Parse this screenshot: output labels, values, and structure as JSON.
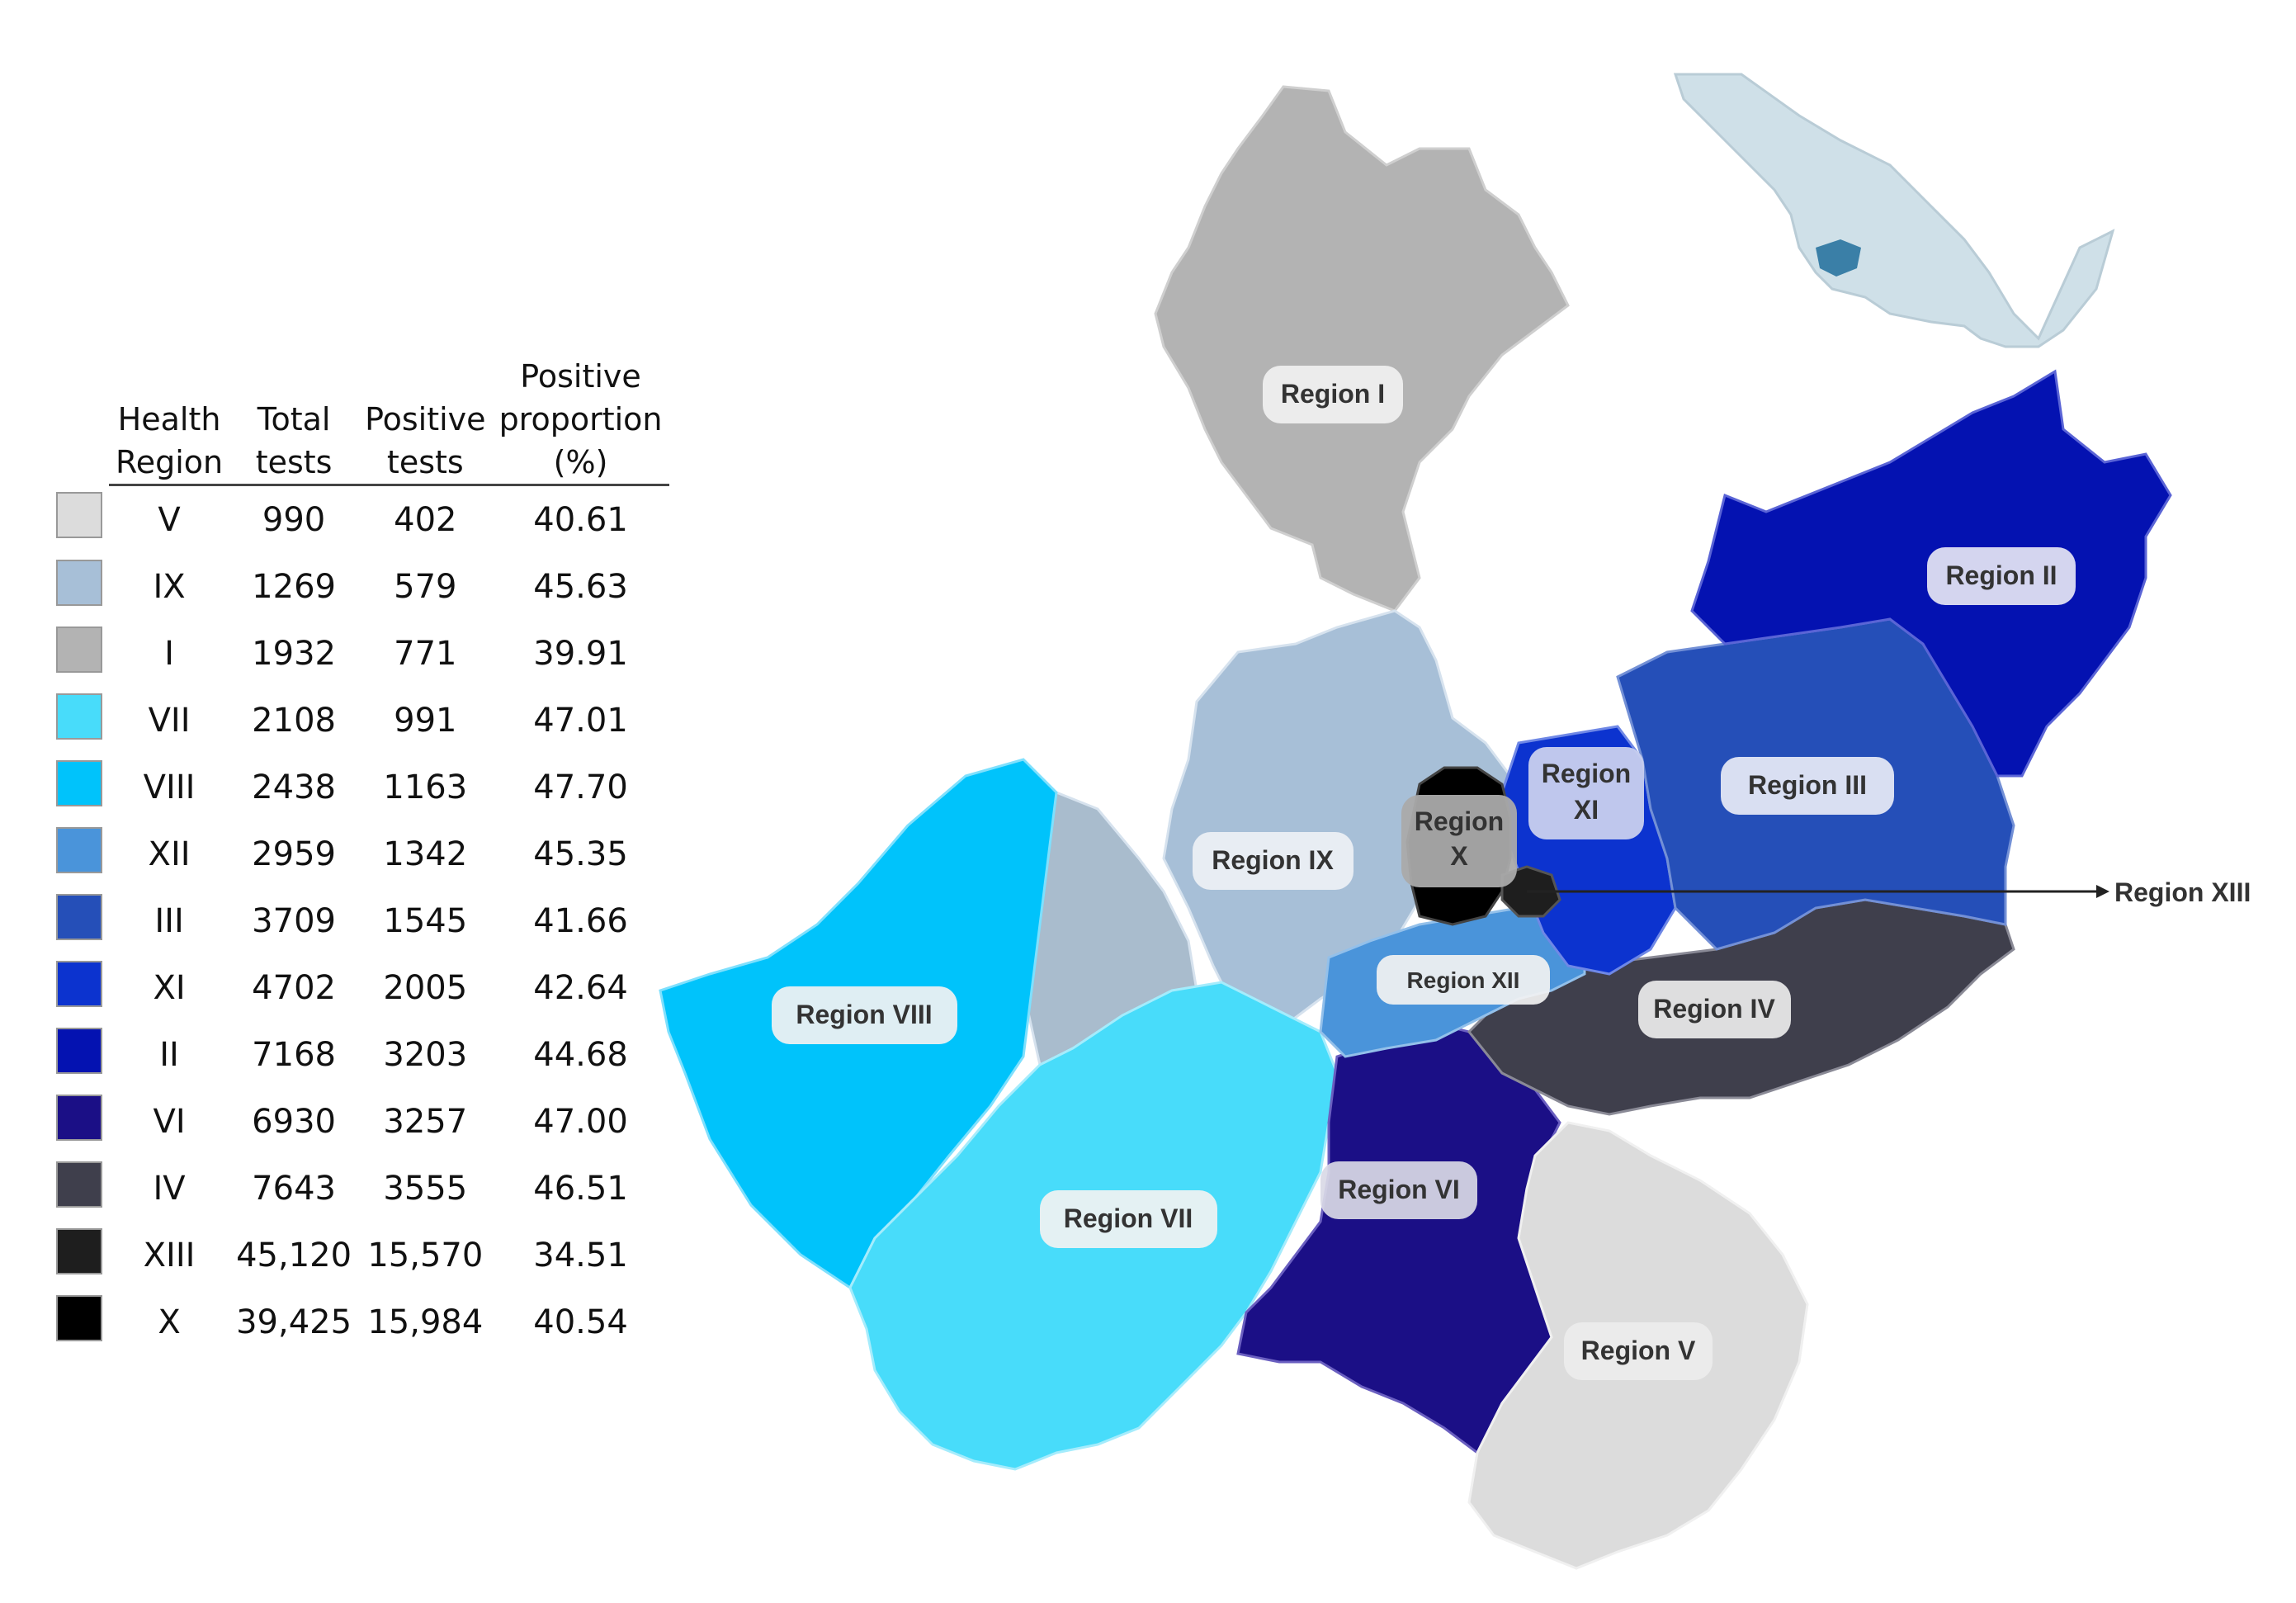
{
  "legend": {
    "headers": {
      "health_region": "Health Region",
      "total_tests": "Total tests",
      "positive_tests": "Positive tests",
      "positive_proportion": "Positive proportion (%)"
    },
    "rows": [
      {
        "region": "V",
        "total": "990",
        "positive": "402",
        "proportion": "40.61",
        "color": "#dcdcdc"
      },
      {
        "region": "IX",
        "total": "1269",
        "positive": "579",
        "proportion": "45.63",
        "color": "#a7bfd7"
      },
      {
        "region": "I",
        "total": "1932",
        "positive": "771",
        "proportion": "39.91",
        "color": "#b3b3b3"
      },
      {
        "region": "VII",
        "total": "2108",
        "positive": "991",
        "proportion": "47.01",
        "color": "#48dcfa"
      },
      {
        "region": "VIII",
        "total": "2438",
        "positive": "1163",
        "proportion": "47.70",
        "color": "#00c3fb"
      },
      {
        "region": "XII",
        "total": "2959",
        "positive": "1342",
        "proportion": "45.35",
        "color": "#4a94da"
      },
      {
        "region": "III",
        "total": "3709",
        "positive": "1545",
        "proportion": "41.66",
        "color": "#254fb8"
      },
      {
        "region": "XI",
        "total": "4702",
        "positive": "2005",
        "proportion": "42.64",
        "color": "#0c33cf"
      },
      {
        "region": "II",
        "total": "7168",
        "positive": "3203",
        "proportion": "44.68",
        "color": "#0412b1"
      },
      {
        "region": "VI",
        "total": "6930",
        "positive": "3257",
        "proportion": "47.00",
        "color": "#1b0f86"
      },
      {
        "region": "IV",
        "total": "7643",
        "positive": "3555",
        "proportion": "46.51",
        "color": "#3f3f4c"
      },
      {
        "region": "XIII",
        "total": "45,120",
        "positive": "15,570",
        "proportion": "34.51",
        "color": "#1e1e1e"
      },
      {
        "region": "X",
        "total": "39,425",
        "positive": "15,984",
        "proportion": "40.54",
        "color": "#000000"
      }
    ]
  },
  "map": {
    "labels": {
      "region_1": "Region I",
      "region_2": "Region II",
      "region_3": "Region III",
      "region_4": "Region IV",
      "region_5": "Region V",
      "region_6": "Region VI",
      "region_7": "Region VII",
      "region_8": "Region VIII",
      "region_9": "Region IX",
      "region_10_line1": "Region",
      "region_10_line2": "X",
      "region_11_line1": "Region",
      "region_11_line2": "XI",
      "region_12": "Region XII",
      "region_13": "Region XIII"
    },
    "colors": {
      "mexico_fill": "#cfe0e8",
      "jalisco_highlight": "#3a7fa7",
      "label_box": "#f2f2f2"
    }
  }
}
